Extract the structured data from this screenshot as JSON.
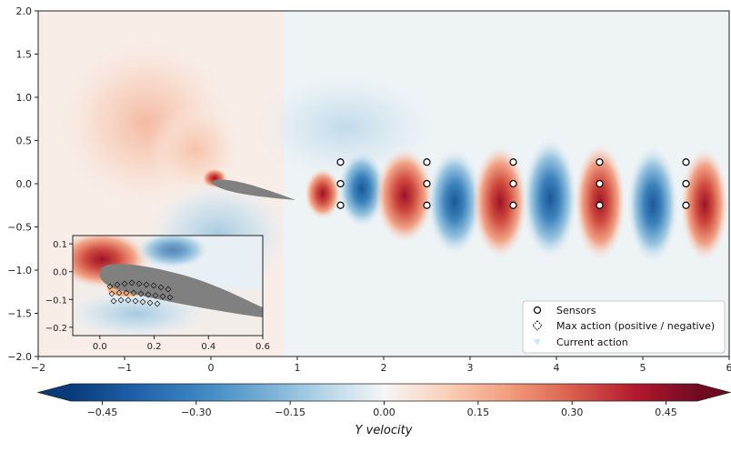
{
  "chart_data": {
    "type": "heatmap",
    "title": "",
    "xlabel": "",
    "ylabel": "",
    "xlim": [
      -2,
      6
    ],
    "ylim": [
      -2.0,
      2.0
    ],
    "x_ticks": [
      "−2",
      "−1",
      "0",
      "1",
      "2",
      "3",
      "4",
      "5",
      "6"
    ],
    "y_ticks": [
      "2.0",
      "1.5",
      "1.0",
      "0.5",
      "0.0",
      "−0.5",
      "−1.0",
      "−1.5",
      "−2.0"
    ],
    "x_tick_values": [
      -2,
      -1,
      0,
      1,
      2,
      3,
      4,
      5,
      6
    ],
    "y_tick_values": [
      2.0,
      1.5,
      1.0,
      0.5,
      0.0,
      -0.5,
      -1.0,
      -1.5,
      -2.0
    ],
    "sensors": {
      "x": [
        1.5,
        2.5,
        3.5,
        4.5,
        5.5
      ],
      "y": [
        0.25,
        0.0,
        -0.25
      ]
    },
    "legend": {
      "position": "lower-right",
      "entries": [
        "Sensors",
        "Max action (positive / negative)",
        "Current action"
      ]
    },
    "colorbar": {
      "label": "Y velocity",
      "colormap": "RdBu_r",
      "vmin": -0.5,
      "vmax": 0.5,
      "ticks": [
        "−0.45",
        "−0.30",
        "−0.15",
        "0.00",
        "0.15",
        "0.30",
        "0.45"
      ],
      "tick_values": [
        -0.45,
        -0.3,
        -0.15,
        0.0,
        0.15,
        0.3,
        0.45
      ]
    },
    "inset": {
      "xlim": [
        -0.1,
        0.6
      ],
      "ylim": [
        -0.23,
        0.13
      ],
      "x_ticks": [
        "0.0",
        "0.2",
        "0.4",
        "0.6"
      ],
      "x_tick_values": [
        0.0,
        0.2,
        0.4,
        0.6
      ],
      "y_ticks": [
        "0.1",
        "0.0",
        "−0.1",
        "−0.2"
      ],
      "y_tick_values": [
        0.1,
        0.0,
        -0.1,
        -0.2
      ]
    }
  },
  "colors": {
    "positive": "#b2182b",
    "negative": "#2166ac",
    "neutral": "#f7f7f7",
    "airfoil": "#808080",
    "current_action": "#cde9f7"
  }
}
